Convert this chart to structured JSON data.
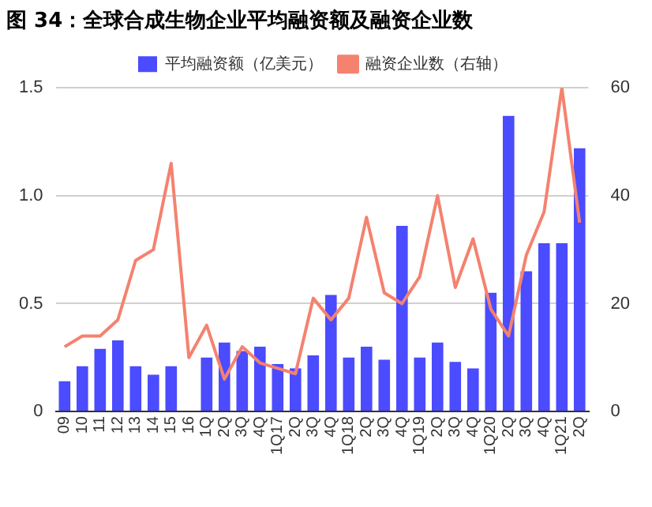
{
  "chart_data": {
    "type": "bar",
    "title": "图 34：全球合成生物企业平均融资额及融资企业数",
    "categories": [
      "09",
      "10",
      "11",
      "12",
      "13",
      "14",
      "15",
      "16",
      "1Q",
      "2Q",
      "3Q",
      "4Q",
      "1Q17",
      "2Q",
      "3Q",
      "4Q",
      "1Q18",
      "2Q",
      "3Q",
      "4Q",
      "1Q19",
      "2Q",
      "3Q",
      "4Q",
      "1Q20",
      "2Q",
      "3Q",
      "4Q",
      "1Q21",
      "2Q"
    ],
    "series": [
      {
        "name": "平均融资额（亿美元）",
        "color": "#4b4bff",
        "values": [
          0.14,
          0.21,
          0.29,
          0.33,
          0.21,
          0.17,
          0.21,
          0,
          0.25,
          0.32,
          0.28,
          0.3,
          0.22,
          0.2,
          0.26,
          0.54,
          0.25,
          0.3,
          0.24,
          0.86,
          0.25,
          0.32,
          0.23,
          0.2,
          0.55,
          1.37,
          0.65,
          0.78,
          0.78,
          1.22
        ]
      },
      {
        "name": "融资企业数（右轴）",
        "type": "line",
        "axis": "y2",
        "color": "#f4826f",
        "values": [
          12,
          14,
          14,
          17,
          28,
          30,
          46,
          10,
          16,
          6,
          12,
          9,
          8,
          7,
          21,
          17,
          21,
          36,
          22,
          20,
          25,
          40,
          23,
          32,
          19,
          14,
          29,
          37,
          60,
          35
        ]
      }
    ],
    "ylim": [
      0,
      1.5
    ],
    "yticks": [
      0,
      0.5,
      {
        "value": 1,
        "label": "1.0"
      },
      1.5
    ],
    "y2lim": [
      0,
      60
    ],
    "y2ticks": [
      0,
      20,
      40,
      60
    ],
    "grid": "y",
    "legend": "top"
  }
}
